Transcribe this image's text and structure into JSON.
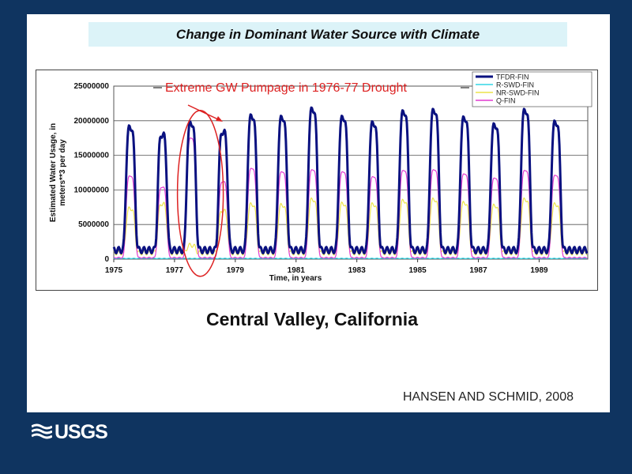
{
  "slide": {
    "title": "Change in Dominant Water Source with Climate",
    "caption": "Central Valley, California",
    "credit": "HANSEN AND SCHMID, 2008",
    "logo_text": "USGS",
    "background_color": "#0f3460",
    "title_box_color": "#dcf3f8"
  },
  "chart_data": {
    "type": "line",
    "xlabel": "Time, in years",
    "ylabel_lines": [
      "Estimated Water Usage, in",
      "meters**3 per day"
    ],
    "xlim": [
      1975,
      1990.6
    ],
    "ylim": [
      0,
      25000000
    ],
    "x_ticks": [
      "1975",
      "1977",
      "1979",
      "1981",
      "1983",
      "1985",
      "1987",
      "1989"
    ],
    "y_ticks": [
      "0",
      "5000000",
      "10000000",
      "15000000",
      "20000000",
      "25000000"
    ],
    "grid": true,
    "legend_position": "top-right",
    "annotation": {
      "text": "Extreme GW Pumpage  in 1976-77 Drought",
      "ellipse_center": [
        1977.85,
        9500000
      ],
      "color": "#dd2222"
    },
    "season_peak_years": [
      1975.55,
      1976.6,
      1977.55,
      1978.6,
      1979.55,
      1980.55,
      1981.55,
      1982.55,
      1983.55,
      1984.55,
      1985.55,
      1986.55,
      1987.55,
      1988.55,
      1989.55
    ],
    "series": [
      {
        "name": "TFDR-FIN",
        "color": "#0a1180",
        "peaks": [
          19000000,
          18000000,
          19600000,
          18400000,
          20600000,
          20400000,
          21600000,
          20400000,
          19600000,
          21200000,
          21400000,
          20300000,
          19300000,
          21400000,
          19700000
        ],
        "base": 1300000
      },
      {
        "name": "R-SWD-FIN",
        "color": "#33d6e6",
        "peaks": [
          100000,
          100000,
          100000,
          100000,
          100000,
          100000,
          100000,
          100000,
          100000,
          100000,
          100000,
          100000,
          100000,
          100000,
          100000
        ],
        "base": 100000
      },
      {
        "name": "NR-SWD-FIN",
        "color": "#ebe34a",
        "peaks": [
          7300000,
          8000000,
          2000000,
          7000000,
          7900000,
          7800000,
          8600000,
          8000000,
          7900000,
          8400000,
          8600000,
          8100000,
          7700000,
          8600000,
          7900000
        ],
        "base": 900000
      },
      {
        "name": "Q-FIN",
        "color": "#e23ad0",
        "peaks": [
          12000000,
          10400000,
          17500000,
          11200000,
          13100000,
          12600000,
          12900000,
          12600000,
          11900000,
          12800000,
          12900000,
          12300000,
          11700000,
          12800000,
          12100000
        ],
        "base": 200000
      }
    ]
  }
}
